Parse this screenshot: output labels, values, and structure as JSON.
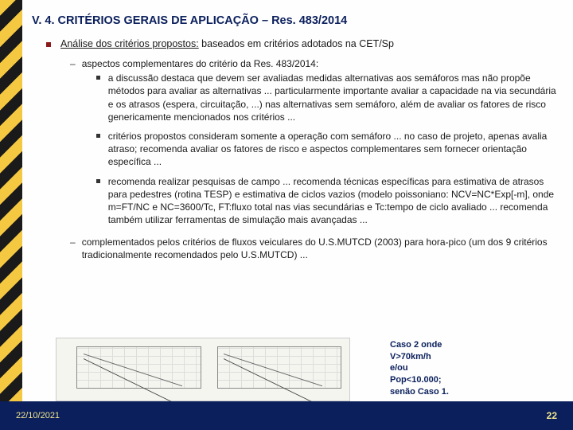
{
  "title": "V. 4. CRITÉRIOS GERAIS DE APLICAÇÃO – Res. 483/2014",
  "main": {
    "label_underlined": "Análise dos critérios propostos:",
    "label_rest": " baseados em critérios adotados na CET/Sp"
  },
  "sub1": {
    "heading": "aspectos complementares do critério da Res. 483/2014:",
    "item1": "a discussão destaca que devem ser avaliadas medidas alternativas aos semáforos mas não propõe métodos para avaliar as alternativas ... particularmente importante avaliar a capacidade na via secundária e os atrasos (espera, circuitação, ...) nas alternativas sem semáforo, além de avaliar os fatores de risco genericamente mencionados nos critérios ...",
    "item2": "critérios propostos consideram somente a operação com semáforo ... no caso de projeto, apenas avalia atraso; recomenda avaliar os fatores de risco e aspectos complementares sem fornecer orientação específica ...",
    "item3": "recomenda realizar pesquisas de campo ... recomenda técnicas específicas para estimativa de atrasos para pedestres (rotina TESP) e estimativa de ciclos vazios (modelo poissoniano: NCV=NC*Exp[-m], onde m=FT/NC e NC=3600/Tc, FT:fluxo total nas vias secundárias e Tc:tempo de ciclo avaliado ... recomenda também utilizar ferramentas de simulação mais avançadas ..."
  },
  "sub2": {
    "text": "complementados pelos critérios de fluxos veiculares do U.S.MUTCD (2003) para hora-pico (um dos 9 critérios tradicionalmente recomendados pelo U.S.MUTCD) ..."
  },
  "caso": {
    "line1": "Caso 2 onde",
    "line2": "V>70km/h",
    "line3": "e/ou",
    "line4": "Pop<10.000;",
    "line5": "senão Caso 1."
  },
  "footer": {
    "date": "22/10/2021",
    "page": "22"
  },
  "colors": {
    "title": "#0a1f5c",
    "bullet_red": "#8b1a1a",
    "footer_bg": "#0a1f5c",
    "footer_text": "#f0e68c",
    "stripe_yellow": "#f5c842",
    "stripe_black": "#1a1a1a"
  }
}
